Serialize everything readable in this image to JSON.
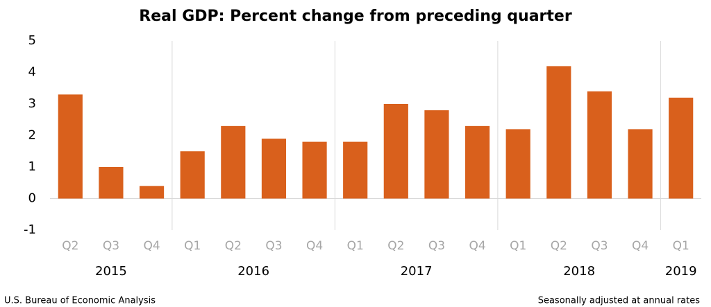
{
  "chart_data": {
    "type": "bar",
    "title": "Real GDP:  Percent change from preceding quarter",
    "groups": [
      {
        "label": "2015",
        "categories": [
          "Q2",
          "Q3",
          "Q4"
        ]
      },
      {
        "label": "2016",
        "categories": [
          "Q1",
          "Q2",
          "Q3",
          "Q4"
        ]
      },
      {
        "label": "2017",
        "categories": [
          "Q1",
          "Q2",
          "Q3",
          "Q4"
        ]
      },
      {
        "label": "2018",
        "categories": [
          "Q1",
          "Q2",
          "Q3",
          "Q4"
        ]
      },
      {
        "label": "2019",
        "categories": [
          "Q1"
        ]
      }
    ],
    "values": [
      3.3,
      1.0,
      0.4,
      1.5,
      2.3,
      1.9,
      1.8,
      1.8,
      3.0,
      2.8,
      2.3,
      2.2,
      4.2,
      3.4,
      2.2,
      3.2
    ],
    "color": "#d9601c",
    "ylim": [
      -1,
      5
    ],
    "yticks": [
      -1,
      0,
      1,
      2,
      3,
      4,
      5
    ],
    "source": "U.S. Bureau of Economic Analysis",
    "note": "Seasonally adjusted at annual rates"
  }
}
